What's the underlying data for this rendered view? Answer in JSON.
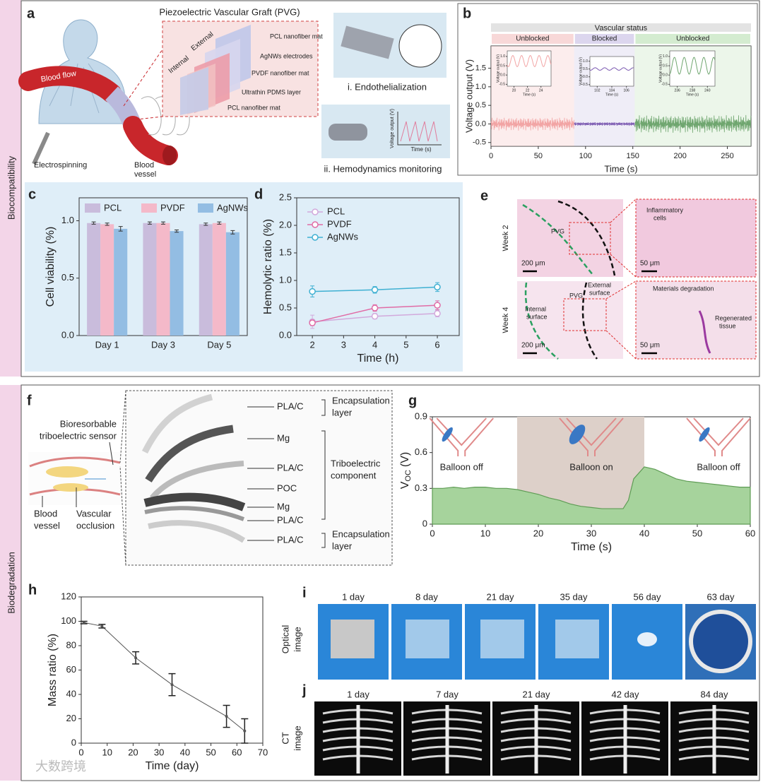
{
  "figure": {
    "sections": [
      "Biocompatibility",
      "Biodegradation"
    ],
    "panel_a": {
      "letter": "a",
      "title": "Piezoelectric Vascular Graft (PVG)",
      "blood_flow": "Blood flow",
      "electrospinning": "Electrospinning",
      "blood_vessel": [
        "Blood",
        "vessel"
      ],
      "internal": "Internal",
      "external": "External",
      "layers": [
        "PCL nanofiber mat",
        "AgNWs electrodes",
        "PVDF nanofiber mat",
        "Ultrathin PDMS layer",
        "PCL nanofiber mat"
      ],
      "inset_i": "i. Endothelialization",
      "inset_ii": "ii. Hemodynamics monitoring",
      "inset_ii_ylabel": "Voltage output (V)",
      "inset_ii_xlabel": "Time (s)"
    },
    "panel_e": {
      "letter": "e",
      "rows": [
        "Week 2",
        "Week 4"
      ],
      "pvg_1": "PVG",
      "scale_200_1": "200 μm",
      "scale_50_1": "50 μm",
      "inflammatory": [
        "Inflammatory",
        "cells"
      ],
      "pvg_2": "PVG",
      "external": [
        "External",
        "surface"
      ],
      "internal": [
        "Internal",
        "surface"
      ],
      "scale_200_2": "200 μm",
      "degradation": "Materials degradation",
      "regenerated": [
        "Regenerated",
        "tissue"
      ],
      "scale_50_2": "50 μm"
    },
    "panel_f": {
      "letter": "f",
      "sensor": [
        "Bioresorbable",
        "triboelectric sensor"
      ],
      "vessel": [
        "Blood",
        "vessel"
      ],
      "occlusion": [
        "Vascular",
        "occlusion"
      ],
      "layers": [
        "PLA/C",
        "Mg",
        "PLA/C",
        "POC",
        "Mg",
        "PLA/C",
        "PLA/C"
      ],
      "groups": [
        [
          "Encapsulation",
          "layer"
        ],
        [
          "Triboelectric",
          "component"
        ],
        [
          "Encapsulation",
          "layer"
        ]
      ]
    },
    "panel_i": {
      "letter": "i",
      "row_label": [
        "Optical",
        "image"
      ],
      "days": [
        "1 day",
        "8 day",
        "21 day",
        "35 day",
        "56 day",
        "63 day"
      ]
    },
    "panel_j": {
      "letter": "j",
      "row_label": [
        "CT",
        "image"
      ],
      "days": [
        "1 day",
        "7 day",
        "21 day",
        "42 day",
        "84 day"
      ]
    },
    "watermark": "大数跨境"
  },
  "chart_data": [
    {
      "type": "signal",
      "panel": "b",
      "header": "Vascular status",
      "xlabel": "Time (s)",
      "ylabel": "Voltage output (V)",
      "xlim": [
        0,
        275
      ],
      "xticks": [
        0,
        50,
        100,
        150,
        200,
        250
      ],
      "ylim": [
        -0.6,
        2.1
      ],
      "yticks": [
        -0.5,
        {
          "value": 0,
          "label": "0.0"
        },
        0.5,
        {
          "value": 1,
          "label": "1.0"
        },
        1.5
      ],
      "segments": [
        {
          "name": "Unblocked",
          "x": [
            0,
            88
          ],
          "amplitude": 0.18,
          "color": "#f2a4a4",
          "band": "#f8d8d8"
        },
        {
          "name": "Blocked",
          "x": [
            88,
            152
          ],
          "amplitude": 0.05,
          "color": "#7a58b0",
          "band": "#dcd6ee"
        },
        {
          "name": "Unblocked",
          "x": [
            152,
            275
          ],
          "amplitude": 0.24,
          "color": "#6fa66f",
          "band": "#d4ecd0"
        }
      ],
      "insets": [
        {
          "xlim": [
            19,
            25.5
          ],
          "xticks": [
            20,
            22,
            24
          ],
          "center": 0.75,
          "amplitude": 0.3
        },
        {
          "xlim": [
            101,
            107
          ],
          "xticks": [
            102,
            104,
            106
          ],
          "center": 0.5,
          "amplitude": 0.08
        },
        {
          "xlim": [
            235,
            241
          ],
          "xticks": [
            236,
            238,
            240
          ],
          "center": 0.5,
          "amplitude": 0.45
        }
      ],
      "inset_ylim": [
        -0.6,
        1.3
      ],
      "inset_yticks": [
        -0.5,
        {
          "value": 0,
          "label": "0.0"
        },
        0.5,
        {
          "value": 1,
          "label": "1.0"
        }
      ],
      "inset_xlabel": "Time (s)",
      "inset_ylabel": "Voltage output (V)"
    },
    {
      "type": "bar",
      "panel": "c",
      "ylabel": "Cell viability (%)",
      "categories": [
        "Day 1",
        "Day 3",
        "Day 5"
      ],
      "ylim": [
        0,
        1.2
      ],
      "yticks": [
        {
          "value": 0,
          "label": "0.0"
        },
        0.5,
        {
          "value": 1,
          "label": "1.0"
        }
      ],
      "series": [
        {
          "name": "PCL",
          "color": "#c9bcdc",
          "values": [
            0.98,
            0.98,
            0.97
          ],
          "errors": [
            0.01,
            0.01,
            0.01
          ]
        },
        {
          "name": "PVDF",
          "color": "#f4b9c9",
          "values": [
            0.97,
            0.98,
            0.98
          ],
          "errors": [
            0.01,
            0.01,
            0.01
          ]
        },
        {
          "name": "AgNWs",
          "color": "#93bde3",
          "values": [
            0.93,
            0.91,
            0.9
          ],
          "errors": [
            0.02,
            0.01,
            0.015
          ]
        }
      ]
    },
    {
      "type": "line",
      "panel": "d",
      "xlabel": "Time (h)",
      "ylabel": "Hemolytic ratio (%)",
      "x": [
        2,
        4,
        6
      ],
      "xlim": [
        1.5,
        6.7
      ],
      "xticks": [
        2,
        3,
        4,
        5,
        6
      ],
      "ylim": [
        0,
        2.5
      ],
      "yticks": [
        {
          "value": 0,
          "label": "0.0"
        },
        0.5,
        {
          "value": 1,
          "label": "1.0"
        },
        1.5,
        {
          "value": 2,
          "label": "2.0"
        },
        2.5
      ],
      "series": [
        {
          "name": "PCL",
          "color": "#d2a9dc",
          "values": [
            0.25,
            0.35,
            0.4
          ],
          "errors": [
            0.12,
            0.05,
            0.06
          ]
        },
        {
          "name": "PVDF",
          "color": "#e06ca6",
          "values": [
            0.23,
            0.5,
            0.55
          ],
          "errors": [
            0.05,
            0.06,
            0.08
          ]
        },
        {
          "name": "AgNWs",
          "color": "#3fb0d2",
          "values": [
            0.8,
            0.83,
            0.88
          ],
          "errors": [
            0.1,
            0.06,
            0.08
          ]
        }
      ]
    },
    {
      "type": "area",
      "panel": "g",
      "xlabel": "Time (s)",
      "ylabel": "V",
      "ylabel_sub": "OC",
      "ylabel_unit": "(V)",
      "x": [
        0,
        2,
        4,
        6,
        8,
        10,
        12,
        14,
        16,
        18,
        20,
        22,
        24,
        26,
        28,
        30,
        32,
        34,
        36,
        37,
        38,
        40,
        42,
        44,
        46,
        48,
        50,
        52,
        54,
        56,
        58,
        60
      ],
      "values": [
        0.3,
        0.3,
        0.31,
        0.3,
        0.31,
        0.31,
        0.3,
        0.3,
        0.29,
        0.27,
        0.25,
        0.22,
        0.2,
        0.17,
        0.15,
        0.14,
        0.13,
        0.13,
        0.13,
        0.2,
        0.38,
        0.48,
        0.46,
        0.42,
        0.38,
        0.36,
        0.35,
        0.34,
        0.33,
        0.32,
        0.31,
        0.31
      ],
      "xlim": [
        0,
        60
      ],
      "xticks": [
        0,
        10,
        20,
        30,
        40,
        50,
        60
      ],
      "ylim": [
        0,
        0.9
      ],
      "yticks": [
        0,
        0.3,
        0.6,
        0.9
      ],
      "color": "#a6d39c",
      "shade": [
        16,
        40
      ],
      "shade_color": "#ddd0c9",
      "annotations": [
        "Balloon off",
        "Balloon on",
        "Balloon off"
      ]
    },
    {
      "type": "errorline",
      "panel": "h",
      "xlabel": "Time (day)",
      "ylabel": "Mass ratio (%)",
      "x": [
        1,
        8,
        21,
        35,
        56,
        63
      ],
      "values": [
        99,
        96,
        70,
        48,
        22,
        10
      ],
      "errors": [
        1,
        1.5,
        5,
        9,
        9,
        10
      ],
      "xlim": [
        0,
        70
      ],
      "xticks": [
        0,
        10,
        20,
        30,
        40,
        50,
        60,
        70
      ],
      "ylim": [
        0,
        120
      ],
      "yticks": [
        0,
        20,
        40,
        60,
        80,
        100,
        120
      ],
      "color": "#555555"
    }
  ]
}
